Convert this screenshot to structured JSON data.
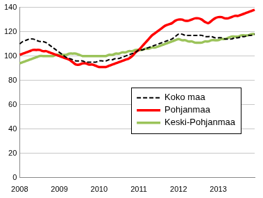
{
  "chart_data": {
    "type": "line",
    "categories": [
      "2008",
      null,
      null,
      null,
      null,
      null,
      null,
      null,
      null,
      null,
      null,
      null,
      "2009",
      null,
      null,
      null,
      null,
      null,
      null,
      null,
      null,
      null,
      null,
      null,
      "2010",
      null,
      null,
      null,
      null,
      null,
      null,
      null,
      null,
      null,
      null,
      null,
      "2011",
      null,
      null,
      null,
      null,
      null,
      null,
      null,
      null,
      null,
      null,
      null,
      "2012",
      null,
      null,
      null,
      null,
      null,
      null,
      null,
      null,
      null,
      null,
      null,
      "2013",
      null,
      null,
      null,
      null,
      null,
      null,
      null,
      null,
      null,
      null,
      null
    ],
    "series": [
      {
        "name": "Koko maa",
        "color": "#000000",
        "line_style": "dashed",
        "values": [
          110,
          112,
          113,
          114,
          114,
          113,
          112,
          112,
          111,
          109,
          107,
          105,
          103,
          101,
          99,
          98,
          97,
          96,
          96,
          96,
          95,
          95,
          95,
          95,
          96,
          96,
          96,
          97,
          97,
          98,
          98,
          99,
          100,
          101,
          102,
          103,
          105,
          105,
          106,
          107,
          108,
          109,
          110,
          111,
          112,
          113,
          114,
          116,
          118,
          118,
          117,
          117,
          117,
          117,
          117,
          117,
          116,
          116,
          116,
          115,
          115,
          115,
          114,
          114,
          114,
          115,
          115,
          116,
          116,
          117,
          117,
          118
        ]
      },
      {
        "name": "Pohjanmaa",
        "color": "#ff0000",
        "line_style": "solid",
        "values": [
          101,
          102,
          103,
          104,
          105,
          105,
          105,
          104,
          104,
          103,
          102,
          101,
          100,
          99,
          98,
          97,
          95,
          93,
          93,
          94,
          94,
          93,
          93,
          92,
          91,
          91,
          91,
          92,
          93,
          94,
          95,
          96,
          97,
          98,
          100,
          103,
          105,
          108,
          111,
          114,
          117,
          119,
          121,
          123,
          125,
          126,
          127,
          129,
          130,
          130,
          129,
          129,
          130,
          131,
          131,
          130,
          128,
          127,
          129,
          131,
          132,
          132,
          131,
          131,
          132,
          133,
          133,
          134,
          135,
          136,
          137,
          138
        ]
      },
      {
        "name": "Keski-Pohjanmaa",
        "color": "#9bc35a",
        "line_style": "solid",
        "values": [
          94,
          95,
          96,
          97,
          98,
          99,
          100,
          100,
          100,
          100,
          100,
          101,
          101,
          101,
          101,
          102,
          102,
          102,
          101,
          100,
          100,
          100,
          100,
          100,
          100,
          100,
          100,
          101,
          101,
          102,
          102,
          103,
          103,
          104,
          104,
          105,
          105,
          105,
          106,
          106,
          107,
          107,
          108,
          109,
          110,
          111,
          112,
          113,
          114,
          113,
          113,
          112,
          112,
          111,
          111,
          111,
          112,
          112,
          113,
          113,
          113,
          114,
          114,
          115,
          116,
          116,
          116,
          117,
          117,
          117,
          118,
          118
        ]
      }
    ],
    "ylim": [
      0,
      140
    ],
    "yticks": [
      0,
      20,
      40,
      60,
      80,
      100,
      120,
      140
    ],
    "grid": true,
    "legend": "right"
  }
}
